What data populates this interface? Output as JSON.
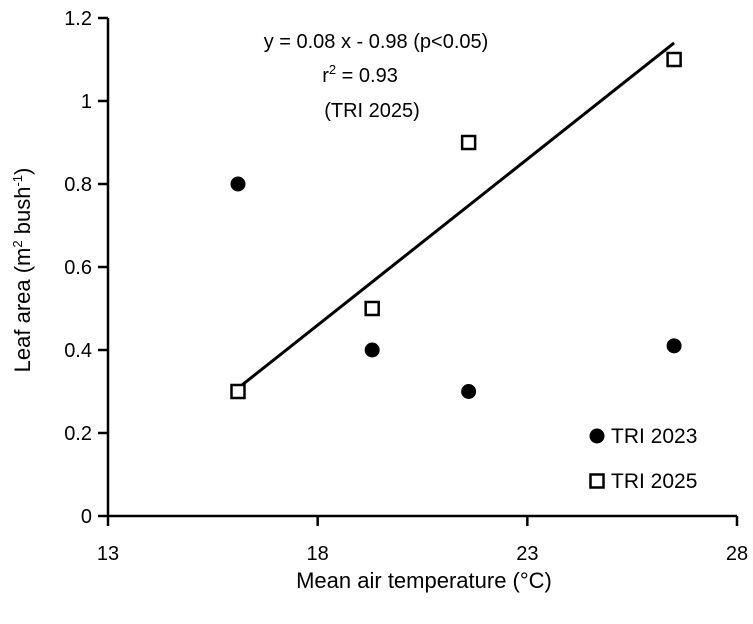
{
  "chart_data": {
    "type": "scatter",
    "xlabel": "Mean air temperature (°C)",
    "ylabel_main": "Leaf area (m",
    "ylabel_sup1": "2",
    "ylabel_unit": " bush",
    "ylabel_sup2": "-1",
    "ylabel_close": ")",
    "xlim": [
      13,
      28
    ],
    "ylim": [
      0,
      1.2
    ],
    "xticks": [
      13,
      18,
      23,
      28
    ],
    "yticks": [
      0,
      0.2,
      0.4,
      0.6,
      0.8,
      1,
      1.2
    ],
    "xtick_labels": [
      "13",
      "18",
      "23",
      "28"
    ],
    "ytick_labels": [
      "0",
      "0.2",
      "0.4",
      "0.6",
      "0.8",
      "1",
      "1.2"
    ],
    "series": [
      {
        "name": "TRI 2023",
        "marker": "filled-circle",
        "x": [
          16.1,
          19.3,
          21.6,
          26.5
        ],
        "y": [
          0.8,
          0.4,
          0.3,
          0.41
        ]
      },
      {
        "name": "TRI 2025",
        "marker": "open-square",
        "x": [
          16.1,
          19.3,
          21.6,
          26.5
        ],
        "y": [
          0.3,
          0.5,
          0.9,
          1.1
        ]
      }
    ],
    "regression": {
      "series": "TRI 2025",
      "slope": 0.08,
      "intercept": -0.98,
      "x_range": [
        16.1,
        26.5
      ]
    },
    "annotation": {
      "line1": "y = 0.08 x - 0.98 (p<0.05)",
      "r2_prefix": "r",
      "r2_sup": "2",
      "r2_suffix": " = 0.93",
      "line3": "(TRI 2025)"
    },
    "legend_position": "bottom-right",
    "grid": false,
    "colors": {
      "ink": "#000000",
      "background": "#ffffff"
    }
  }
}
